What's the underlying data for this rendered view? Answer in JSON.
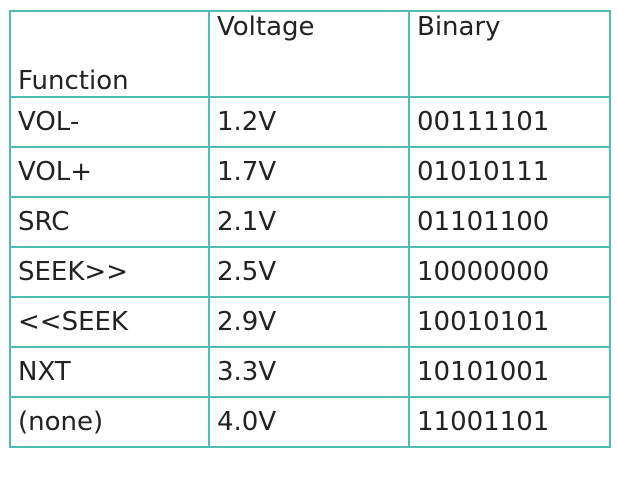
{
  "table": {
    "headers": [
      "Function",
      "Voltage",
      "Binary"
    ],
    "rows": [
      [
        "VOL-",
        "1.2V",
        "00111101"
      ],
      [
        "VOL+",
        "1.7V",
        "01010111"
      ],
      [
        "SRC",
        "2.1V",
        "01101100"
      ],
      [
        "SEEK>>",
        "2.5V",
        "10000000"
      ],
      [
        "<<SEEK",
        "2.9V",
        "10010101"
      ],
      [
        "NXT",
        "3.3V",
        "10101001"
      ],
      [
        "(none)",
        "4.0V",
        "11001101"
      ]
    ]
  },
  "colors": {
    "border": "#4fbdb3",
    "text": "#222222"
  }
}
